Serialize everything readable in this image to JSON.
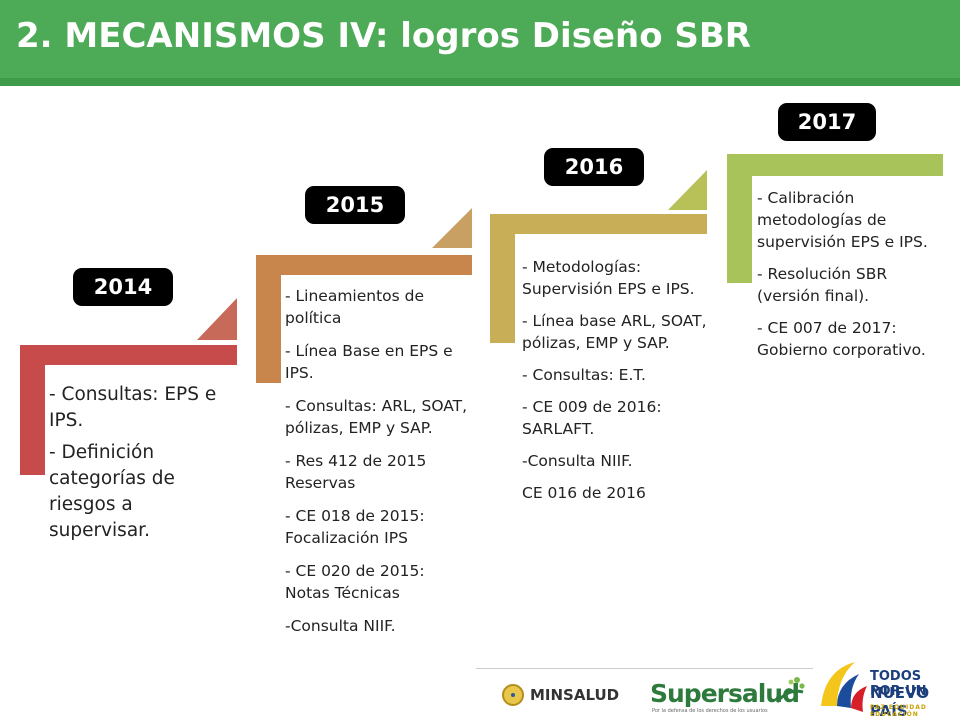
{
  "title": "2. MECANISMOS IV: logros Diseño SBR",
  "steps": [
    {
      "year": "2014",
      "color": "#c74b4b",
      "items": [
        "- Consultas: EPS e IPS.",
        "- Definición categorías de riesgos a supervisar."
      ]
    },
    {
      "year": "2015",
      "color": "#c8864d",
      "items": [
        "- Lineamientos de política",
        "- Línea Base en EPS e IPS.",
        "- Consultas: ARL, SOAT, pólizas, EMP y SAP.",
        "- Res 412 de 2015 Reservas",
        "- CE 018 de 2015: Focalización IPS",
        "- CE 020 de 2015: Notas Técnicas",
        "-Consulta NIIF."
      ]
    },
    {
      "year": "2016",
      "color": "#c9ae58",
      "items": [
        "- Metodologías: Supervisión EPS e IPS.",
        "- Línea base ARL, SOAT, pólizas, EMP y SAP.",
        "- Consultas: E.T.",
        "- CE 009 de 2016: SARLAFT.",
        "-Consulta NIIF.",
        "CE 016 de 2016"
      ]
    },
    {
      "year": "2017",
      "color": "#a8c35a",
      "items": [
        "- Calibración metodologías de supervisión EPS e IPS.",
        "- Resolución SBR (versión final).",
        "- CE 007 de 2017: Gobierno corporativo."
      ]
    }
  ],
  "logos": {
    "minsalud": "MINSALUD",
    "supersalud": "Supersalud",
    "supersalud_tagline": "Por la defensa de los derechos de los usuarios",
    "todos_line1": "TODOS POR UN",
    "todos_line2": "NUEVO PAÍS",
    "todos_line3": "PAZ EQUIDAD EDUCACIÓN"
  },
  "colors": {
    "title_bg": "#4daa57",
    "badge_bg": "#000000"
  }
}
